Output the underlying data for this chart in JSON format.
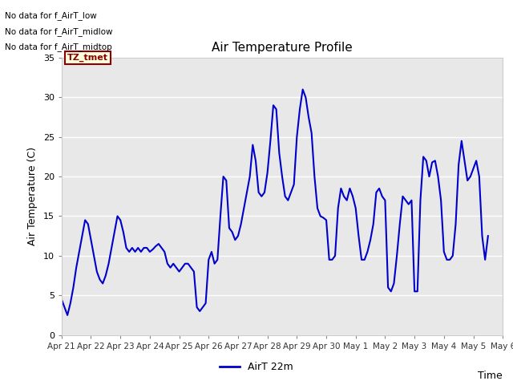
{
  "title": "Air Temperature Profile",
  "xlabel": "Time",
  "ylabel": "Air Temperature (C)",
  "legend_label": "AirT 22m",
  "no_data_texts": [
    "No data for f_AirT_low",
    "No data for f_AirT_midlow",
    "No data for f_AirT_midtop"
  ],
  "tz_label": "TZ_tmet",
  "ylim": [
    0,
    35
  ],
  "yticks": [
    0,
    5,
    10,
    15,
    20,
    25,
    30,
    35
  ],
  "x_labels": [
    "Apr 21",
    "Apr 22",
    "Apr 23",
    "Apr 24",
    "Apr 25",
    "Apr 26",
    "Apr 27",
    "Apr 28",
    "Apr 29",
    "Apr 30",
    "May 1",
    "May 2",
    "May 3",
    "May 4",
    "May 5",
    "May 6"
  ],
  "line_color": "#0000cc",
  "fig_bg_color": "#ffffff",
  "plot_bg_color": "#e8e8e8",
  "grid_color": "#ffffff",
  "x_values": [
    0,
    0.1,
    0.2,
    0.3,
    0.4,
    0.5,
    0.6,
    0.7,
    0.8,
    0.9,
    1.0,
    1.1,
    1.2,
    1.3,
    1.4,
    1.5,
    1.6,
    1.7,
    1.8,
    1.9,
    2.0,
    2.1,
    2.2,
    2.3,
    2.4,
    2.5,
    2.6,
    2.7,
    2.8,
    2.9,
    3.0,
    3.1,
    3.2,
    3.3,
    3.4,
    3.5,
    3.6,
    3.7,
    3.8,
    3.9,
    4.0,
    4.1,
    4.2,
    4.3,
    4.4,
    4.5,
    4.6,
    4.7,
    4.8,
    4.9,
    5.0,
    5.1,
    5.2,
    5.3,
    5.4,
    5.5,
    5.6,
    5.7,
    5.8,
    5.9,
    6.0,
    6.1,
    6.2,
    6.3,
    6.4,
    6.5,
    6.6,
    6.7,
    6.8,
    6.9,
    7.0,
    7.1,
    7.2,
    7.3,
    7.4,
    7.5,
    7.6,
    7.7,
    7.8,
    7.9,
    8.0,
    8.1,
    8.2,
    8.3,
    8.4,
    8.5,
    8.6,
    8.7,
    8.8,
    8.9,
    9.0,
    9.1,
    9.2,
    9.3,
    9.4,
    9.5,
    9.6,
    9.7,
    9.8,
    9.9,
    10.0,
    10.1,
    10.2,
    10.3,
    10.4,
    10.5,
    10.6,
    10.7,
    10.8,
    10.9,
    11.0,
    11.1,
    11.2,
    11.3,
    11.4,
    11.5,
    11.6,
    11.7,
    11.8,
    11.9,
    12.0,
    12.1,
    12.2,
    12.3,
    12.4,
    12.5,
    12.6,
    12.7,
    12.8,
    12.9,
    13.0,
    13.1,
    13.2,
    13.3,
    13.4,
    13.5,
    13.6,
    13.7,
    13.8,
    13.9,
    14.0,
    14.1,
    14.2,
    14.3,
    14.4,
    14.5
  ],
  "y_values": [
    4.5,
    3.5,
    2.5,
    4.0,
    6.0,
    8.5,
    10.5,
    12.5,
    14.5,
    14.0,
    12.0,
    10.0,
    8.0,
    7.0,
    6.5,
    7.5,
    9.0,
    11.0,
    13.0,
    15.0,
    14.5,
    13.0,
    11.0,
    10.5,
    11.0,
    10.5,
    11.0,
    10.5,
    11.0,
    11.0,
    10.5,
    10.8,
    11.2,
    11.5,
    11.0,
    10.5,
    9.0,
    8.5,
    9.0,
    8.5,
    8.0,
    8.5,
    9.0,
    9.0,
    8.5,
    8.0,
    3.5,
    3.0,
    3.5,
    4.0,
    9.5,
    10.5,
    9.0,
    9.5,
    15.0,
    20.0,
    19.5,
    13.5,
    13.0,
    12.0,
    12.5,
    14.0,
    16.0,
    18.0,
    20.0,
    24.0,
    22.0,
    18.0,
    17.5,
    18.0,
    20.5,
    24.5,
    29.0,
    28.5,
    23.0,
    20.0,
    17.5,
    17.0,
    18.0,
    19.0,
    25.0,
    28.5,
    31.0,
    30.0,
    27.5,
    25.5,
    20.0,
    16.0,
    15.0,
    14.8,
    14.5,
    9.5,
    9.5,
    10.0,
    16.0,
    18.5,
    17.5,
    17.0,
    18.5,
    17.5,
    16.0,
    12.5,
    9.5,
    9.5,
    10.5,
    12.0,
    14.0,
    18.0,
    18.5,
    17.5,
    17.0,
    6.0,
    5.5,
    6.5,
    10.0,
    14.0,
    17.5,
    17.0,
    16.5,
    17.0,
    5.5,
    5.5,
    17.0,
    22.5,
    22.0,
    20.0,
    21.8,
    22.0,
    20.0,
    17.0,
    10.5,
    9.5,
    9.5,
    10.0,
    14.0,
    21.5,
    24.5,
    22.0,
    19.5,
    20.0,
    21.0,
    22.0,
    20.0,
    12.5,
    9.5,
    12.5
  ]
}
